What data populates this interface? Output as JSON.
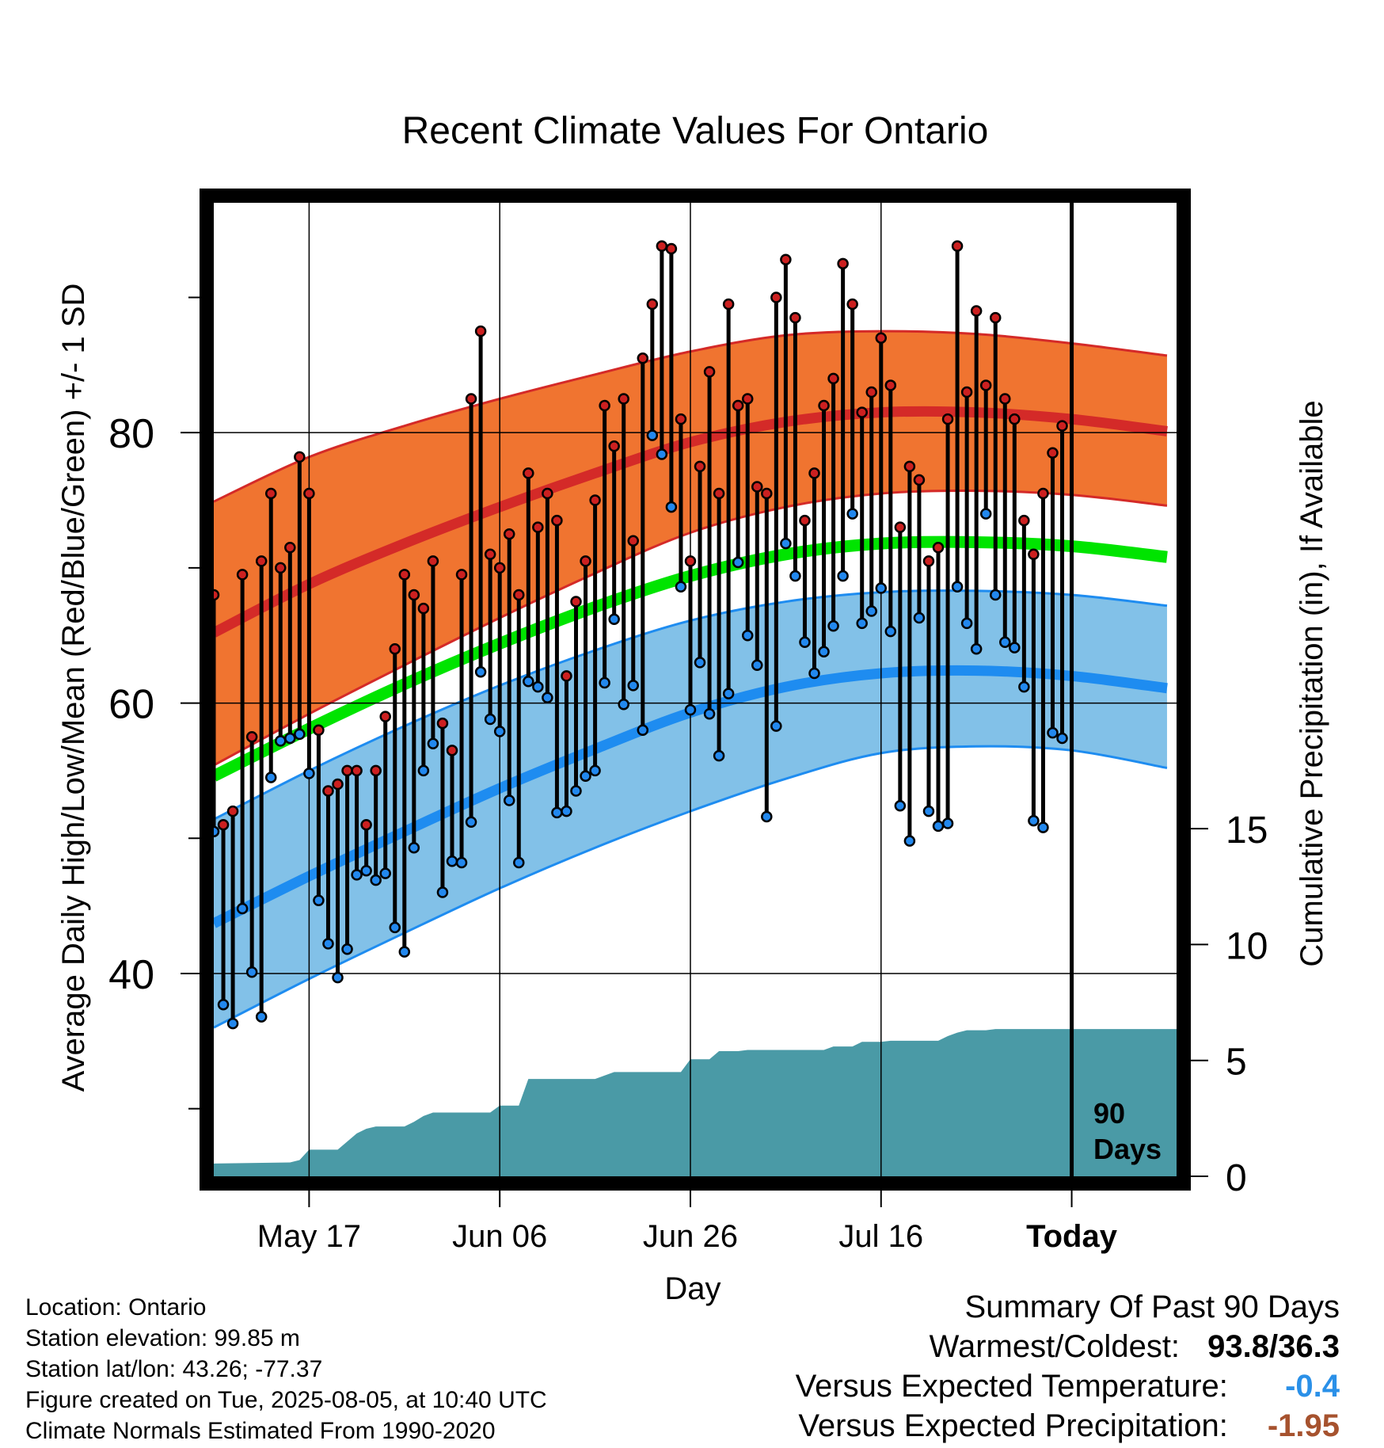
{
  "chart_data": {
    "type": "line",
    "title": "Recent Climate Values For Ontario",
    "xlabel": "Day",
    "ylabel": "Average Daily High/Low/Mean (Red/Blue/Green) +/- 1 SD",
    "y2label": "Cumulative Precipitation (in), If Available",
    "xlim": [
      0,
      101
    ],
    "ylim": [
      25,
      97
    ],
    "y2lim": [
      0,
      42
    ],
    "x_tick_labels": [
      {
        "x": 10,
        "label": "May 17"
      },
      {
        "x": 30,
        "label": "Jun 06"
      },
      {
        "x": 50,
        "label": "Jun 26"
      },
      {
        "x": 70,
        "label": "Jul 16"
      },
      {
        "x": 90,
        "label": "Today"
      }
    ],
    "y_ticks": [
      30,
      40,
      50,
      60,
      70,
      80,
      90
    ],
    "y_tick_labels": [
      40,
      60,
      80
    ],
    "y2_ticks": [
      0,
      5,
      10,
      15
    ],
    "today_x": 90,
    "today_label": [
      "90",
      "Days"
    ],
    "colors": {
      "high_band": "#f07430",
      "high_mean_line": "#d42a28",
      "low_band": "#82c1e8",
      "low_mean_line": "#1e8cf0",
      "mean_line": "#00e400",
      "precip": "#4a9aa6",
      "high_dot": "#cc2020",
      "low_dot": "#2288ee",
      "temp_negative": "#2a90e8",
      "precip_negative": "#a6522e"
    },
    "normals": {
      "x": [
        0,
        10,
        20,
        30,
        40,
        50,
        60,
        70,
        80,
        90,
        100
      ],
      "high_mean": [
        65.2,
        68.8,
        71.8,
        74.5,
        77.0,
        79.3,
        80.8,
        81.5,
        81.5,
        81.0,
        80.1
      ],
      "high_upper": [
        74.9,
        78.2,
        80.5,
        82.5,
        84.3,
        86.0,
        87.2,
        87.5,
        87.3,
        86.6,
        85.7
      ],
      "high_lower": [
        55.4,
        59.2,
        62.8,
        66.3,
        69.6,
        72.6,
        74.5,
        75.5,
        75.7,
        75.4,
        74.6
      ],
      "mean": [
        54.6,
        58.1,
        61.4,
        64.4,
        67.1,
        69.4,
        71.0,
        71.8,
        71.9,
        71.6,
        70.8
      ],
      "low_mean": [
        43.7,
        47.2,
        50.5,
        53.7,
        56.6,
        59.3,
        61.2,
        62.2,
        62.4,
        62.0,
        61.1
      ],
      "low_upper": [
        51.4,
        55.0,
        58.3,
        61.3,
        63.9,
        66.1,
        67.5,
        68.2,
        68.3,
        68.0,
        67.2
      ],
      "low_lower": [
        36.0,
        39.6,
        43.0,
        46.3,
        49.3,
        52.0,
        54.4,
        56.3,
        56.8,
        56.5,
        55.2
      ]
    },
    "series": [
      {
        "name": "High",
        "x": [
          0,
          1,
          2,
          3,
          4,
          5,
          6,
          7,
          8,
          9,
          10,
          11,
          12,
          13,
          14,
          15,
          16,
          17,
          18,
          19,
          20,
          21,
          22,
          23,
          24,
          25,
          26,
          27,
          28,
          29,
          30,
          31,
          32,
          33,
          34,
          35,
          36,
          37,
          38,
          39,
          40,
          41,
          42,
          43,
          44,
          45,
          46,
          47,
          48,
          49,
          50,
          51,
          52,
          53,
          54,
          55,
          56,
          57,
          58,
          59,
          60,
          61,
          62,
          63,
          64,
          65,
          66,
          67,
          68,
          69,
          70,
          71,
          72,
          73,
          74,
          75,
          76,
          77,
          78,
          79,
          80,
          81,
          82,
          83,
          84,
          85,
          86,
          87,
          88,
          89,
          90
        ],
        "values": [
          68,
          51,
          52,
          69.5,
          57.5,
          70.5,
          75.5,
          70,
          71.5,
          78.2,
          75.5,
          58,
          53.5,
          54,
          55,
          55,
          51,
          55,
          59,
          64,
          69.5,
          68,
          67,
          70.5,
          58.5,
          56.5,
          69.5,
          82.5,
          87.5,
          71,
          70,
          72.5,
          68,
          77,
          73,
          75.5,
          73.5,
          62,
          67.5,
          70.5,
          75,
          82,
          79,
          82.5,
          72,
          85.5,
          89.5,
          93.8,
          93.6,
          81,
          70.5,
          77.5,
          84.5,
          75.5,
          89.5,
          82,
          82.5,
          76,
          75.5,
          90,
          92.8,
          88.5,
          73.5,
          77,
          82,
          84,
          92.5,
          89.5,
          81.5,
          83,
          87,
          83.5,
          73,
          77.5,
          76.5,
          70.5,
          71.5,
          81,
          93.8,
          83,
          89,
          83.5,
          88.5,
          82.5,
          81,
          73.5,
          71,
          75.5,
          78.5,
          80.5,
          null
        ]
      },
      {
        "name": "Low",
        "x": [
          0,
          1,
          2,
          3,
          4,
          5,
          6,
          7,
          8,
          9,
          10,
          11,
          12,
          13,
          14,
          15,
          16,
          17,
          18,
          19,
          20,
          21,
          22,
          23,
          24,
          25,
          26,
          27,
          28,
          29,
          30,
          31,
          32,
          33,
          34,
          35,
          36,
          37,
          38,
          39,
          40,
          41,
          42,
          43,
          44,
          45,
          46,
          47,
          48,
          49,
          50,
          51,
          52,
          53,
          54,
          55,
          56,
          57,
          58,
          59,
          60,
          61,
          62,
          63,
          64,
          65,
          66,
          67,
          68,
          69,
          70,
          71,
          72,
          73,
          74,
          75,
          76,
          77,
          78,
          79,
          80,
          81,
          82,
          83,
          84,
          85,
          86,
          87,
          88,
          89,
          90
        ],
        "values": [
          50.5,
          37.7,
          36.3,
          44.8,
          40.1,
          36.8,
          54.5,
          57.2,
          57.4,
          57.7,
          54.8,
          45.4,
          42.2,
          39.7,
          41.8,
          47.3,
          47.6,
          46.9,
          47.4,
          43.4,
          41.6,
          49.3,
          55,
          57,
          46,
          48.3,
          48.2,
          51.2,
          62.3,
          58.8,
          57.9,
          52.8,
          48.2,
          61.6,
          61.2,
          60.4,
          51.9,
          52,
          53.5,
          54.6,
          55,
          61.5,
          66.2,
          59.9,
          61.3,
          58,
          79.8,
          78.4,
          74.5,
          68.6,
          59.5,
          63,
          59.2,
          56.1,
          60.7,
          70.4,
          65,
          62.8,
          51.6,
          58.3,
          71.8,
          69.4,
          64.5,
          62.2,
          63.8,
          65.7,
          69.4,
          74,
          65.9,
          66.8,
          68.5,
          65.3,
          52.4,
          49.8,
          66.3,
          52,
          50.9,
          51.1,
          68.6,
          65.9,
          64,
          74,
          68,
          64.5,
          64.1,
          61.2,
          51.3,
          50.8,
          57.8,
          57.4,
          null
        ]
      }
    ],
    "precip": {
      "x": [
        0,
        8,
        9,
        10,
        11,
        12,
        13,
        14,
        15,
        16,
        17,
        18,
        19,
        20,
        21,
        22,
        23,
        24,
        25,
        26,
        27,
        28,
        29,
        30,
        31,
        32,
        33,
        34,
        35,
        36,
        37,
        38,
        39,
        40,
        41,
        42,
        43,
        44,
        45,
        46,
        47,
        48,
        49,
        50,
        51,
        52,
        53,
        54,
        55,
        56,
        57,
        58,
        59,
        60,
        61,
        62,
        63,
        64,
        65,
        66,
        67,
        68,
        69,
        70,
        71,
        72,
        73,
        74,
        75,
        76,
        77,
        78,
        79,
        80,
        81,
        82,
        83,
        84,
        85,
        86,
        87,
        88,
        89,
        90,
        101
      ],
      "values": [
        0.55,
        0.6,
        0.7,
        1.15,
        1.15,
        1.15,
        1.15,
        1.5,
        1.85,
        2.05,
        2.15,
        2.15,
        2.15,
        2.15,
        2.35,
        2.6,
        2.75,
        2.75,
        2.75,
        2.75,
        2.75,
        2.75,
        2.75,
        3.05,
        3.05,
        3.05,
        4.2,
        4.2,
        4.2,
        4.2,
        4.2,
        4.2,
        4.2,
        4.2,
        4.35,
        4.5,
        4.5,
        4.5,
        4.5,
        4.5,
        4.5,
        4.5,
        4.5,
        5.05,
        5.05,
        5.05,
        5.4,
        5.4,
        5.4,
        5.45,
        5.45,
        5.45,
        5.45,
        5.45,
        5.45,
        5.45,
        5.45,
        5.45,
        5.6,
        5.6,
        5.6,
        5.8,
        5.8,
        5.8,
        5.85,
        5.85,
        5.85,
        5.85,
        5.85,
        5.85,
        6.05,
        6.2,
        6.3,
        6.3,
        6.3,
        6.35,
        6.35,
        6.35,
        6.35,
        6.35,
        6.35,
        6.35,
        6.35,
        6.35,
        6.35
      ]
    }
  },
  "metadata": {
    "location": "Location: Ontario",
    "elevation": "Station elevation: 99.85 m",
    "latlon": "Station lat/lon: 43.26; -77.37",
    "created": "Figure created on Tue, 2025-08-05, at 10:40 UTC",
    "normals": "Climate Normals Estimated From 1990-2020"
  },
  "summary": {
    "title": "Summary Of Past 90 Days",
    "warmest_coldest_label": "Warmest/Coldest:",
    "warmest_coldest_value": "93.8/36.3",
    "temp_label": "Versus Expected Temperature:",
    "temp_value": "-0.4",
    "precip_label": "Versus Expected Precipitation:",
    "precip_value": "-1.95"
  }
}
